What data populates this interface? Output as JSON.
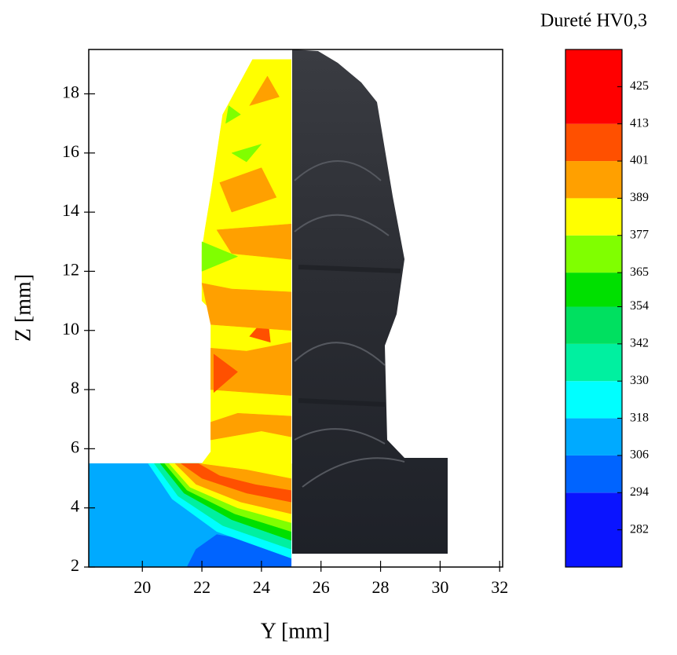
{
  "chart_data": {
    "type": "contour",
    "xlabel": "Y [mm]",
    "ylabel": "Z [mm]",
    "xlim": [
      18.2,
      32.1
    ],
    "ylim": [
      2,
      19.5
    ],
    "xticks": [
      20,
      22,
      24,
      26,
      28,
      30,
      32
    ],
    "yticks": [
      2,
      4,
      6,
      8,
      10,
      12,
      14,
      16,
      18
    ],
    "colorbar": {
      "title": "Dureté HV0,3",
      "lim": [
        270,
        437
      ],
      "levels": [
        294,
        306,
        318,
        330,
        342,
        354,
        365,
        377,
        389,
        401,
        413
      ],
      "colors": [
        "#0a14ff",
        "#0064ff",
        "#00aaff",
        "#00ffff",
        "#00f0a0",
        "#00e060",
        "#00e000",
        "#80ff00",
        "#ffff00",
        "#ffa000",
        "#ff5000",
        "#ff0000"
      ],
      "ticks": [
        282,
        294,
        306,
        318,
        330,
        342,
        354,
        365,
        377,
        389,
        401,
        413,
        425
      ]
    },
    "regions": [
      {
        "value": 312,
        "points": [
          [
            18.2,
            2
          ],
          [
            25,
            2
          ],
          [
            25,
            5.5
          ],
          [
            18.2,
            5.5
          ]
        ]
      },
      {
        "value": 300,
        "points": [
          [
            21.5,
            2
          ],
          [
            25,
            2
          ],
          [
            25,
            2.3
          ],
          [
            23.6,
            2.9
          ],
          [
            22.5,
            3.1
          ],
          [
            21.8,
            2.6
          ]
        ]
      },
      {
        "value": 324,
        "points": [
          [
            20.2,
            5.5
          ],
          [
            21,
            4.3
          ],
          [
            22.5,
            3.2
          ],
          [
            25,
            2.3
          ],
          [
            25,
            5.5
          ]
        ]
      },
      {
        "value": 336,
        "points": [
          [
            20.4,
            5.5
          ],
          [
            21.2,
            4.4
          ],
          [
            22.7,
            3.4
          ],
          [
            25,
            2.6
          ],
          [
            25,
            5.5
          ]
        ]
      },
      {
        "value": 360,
        "points": [
          [
            20.6,
            5.5
          ],
          [
            21.4,
            4.5
          ],
          [
            23,
            3.6
          ],
          [
            25,
            2.9
          ],
          [
            25,
            5.5
          ]
        ]
      },
      {
        "value": 371,
        "points": [
          [
            20.75,
            5.5
          ],
          [
            21.5,
            4.6
          ],
          [
            23.1,
            3.8
          ],
          [
            25,
            3.2
          ],
          [
            25,
            5.5
          ]
        ]
      },
      {
        "value": 383,
        "points": [
          [
            20.9,
            5.5
          ],
          [
            21.6,
            4.7
          ],
          [
            23.2,
            4.0
          ],
          [
            25,
            3.5
          ],
          [
            25,
            5.5
          ]
        ]
      },
      {
        "value": 395,
        "points": [
          [
            21.1,
            5.5
          ],
          [
            21.8,
            4.8
          ],
          [
            23.3,
            4.2
          ],
          [
            25,
            3.8
          ],
          [
            25,
            5.5
          ]
        ]
      },
      {
        "value": 407,
        "points": [
          [
            21.3,
            5.5
          ],
          [
            22,
            5.0
          ],
          [
            23.5,
            4.5
          ],
          [
            25,
            4.2
          ],
          [
            25,
            5.5
          ]
        ]
      },
      {
        "value": 395,
        "points": [
          [
            21.9,
            5.5
          ],
          [
            22.6,
            5.1
          ],
          [
            23.8,
            4.8
          ],
          [
            25,
            4.6
          ],
          [
            25,
            5.5
          ]
        ]
      },
      {
        "value": 383,
        "points": [
          [
            22.0,
            5.5
          ],
          [
            22.3,
            5.9
          ],
          [
            22.3,
            10.7
          ],
          [
            22.0,
            11.0
          ],
          [
            22.0,
            12.7
          ],
          [
            22.1,
            13.4
          ],
          [
            22.3,
            14.6
          ],
          [
            22.7,
            17.3
          ],
          [
            23.7,
            19.16
          ],
          [
            25,
            19.16
          ],
          [
            25,
            5.0
          ],
          [
            23.5,
            5.3
          ]
        ]
      },
      {
        "value": 395,
        "points": [
          [
            22.3,
            6.3
          ],
          [
            24,
            6.6
          ],
          [
            25,
            6.4
          ],
          [
            25,
            7.1
          ],
          [
            23.2,
            7.2
          ],
          [
            22.3,
            6.9
          ]
        ]
      },
      {
        "value": 395,
        "points": [
          [
            22.3,
            8.0
          ],
          [
            25,
            7.8
          ],
          [
            25,
            9.6
          ],
          [
            23.5,
            9.3
          ],
          [
            22.3,
            9.4
          ]
        ]
      },
      {
        "value": 407,
        "points": [
          [
            22.4,
            7.9
          ],
          [
            23.2,
            8.6
          ],
          [
            22.4,
            9.2
          ]
        ]
      },
      {
        "value": 407,
        "points": [
          [
            23.6,
            9.8
          ],
          [
            24.3,
            9.6
          ],
          [
            24.2,
            10.5
          ]
        ]
      },
      {
        "value": 395,
        "points": [
          [
            22.3,
            10.2
          ],
          [
            25,
            10.0
          ],
          [
            25,
            11.3
          ],
          [
            23,
            11.4
          ],
          [
            22.0,
            11.6
          ]
        ]
      },
      {
        "value": 395,
        "points": [
          [
            23,
            12.6
          ],
          [
            25,
            12.4
          ],
          [
            25,
            13.6
          ],
          [
            22.5,
            13.4
          ]
        ]
      },
      {
        "value": 371,
        "points": [
          [
            22.0,
            12.0
          ],
          [
            23.2,
            12.5
          ],
          [
            22.0,
            13.0
          ]
        ]
      },
      {
        "value": 395,
        "points": [
          [
            23,
            14.0
          ],
          [
            24.5,
            14.5
          ],
          [
            24,
            15.5
          ],
          [
            22.6,
            15.0
          ]
        ]
      },
      {
        "value": 371,
        "points": [
          [
            23,
            16.0
          ],
          [
            24,
            16.3
          ],
          [
            23.5,
            15.7
          ]
        ]
      },
      {
        "value": 395,
        "points": [
          [
            23.6,
            17.6
          ],
          [
            24.6,
            17.9
          ],
          [
            24.2,
            18.6
          ]
        ]
      },
      {
        "value": 371,
        "points": [
          [
            22.8,
            17.0
          ],
          [
            23.3,
            17.3
          ],
          [
            22.9,
            17.6
          ]
        ]
      }
    ]
  }
}
